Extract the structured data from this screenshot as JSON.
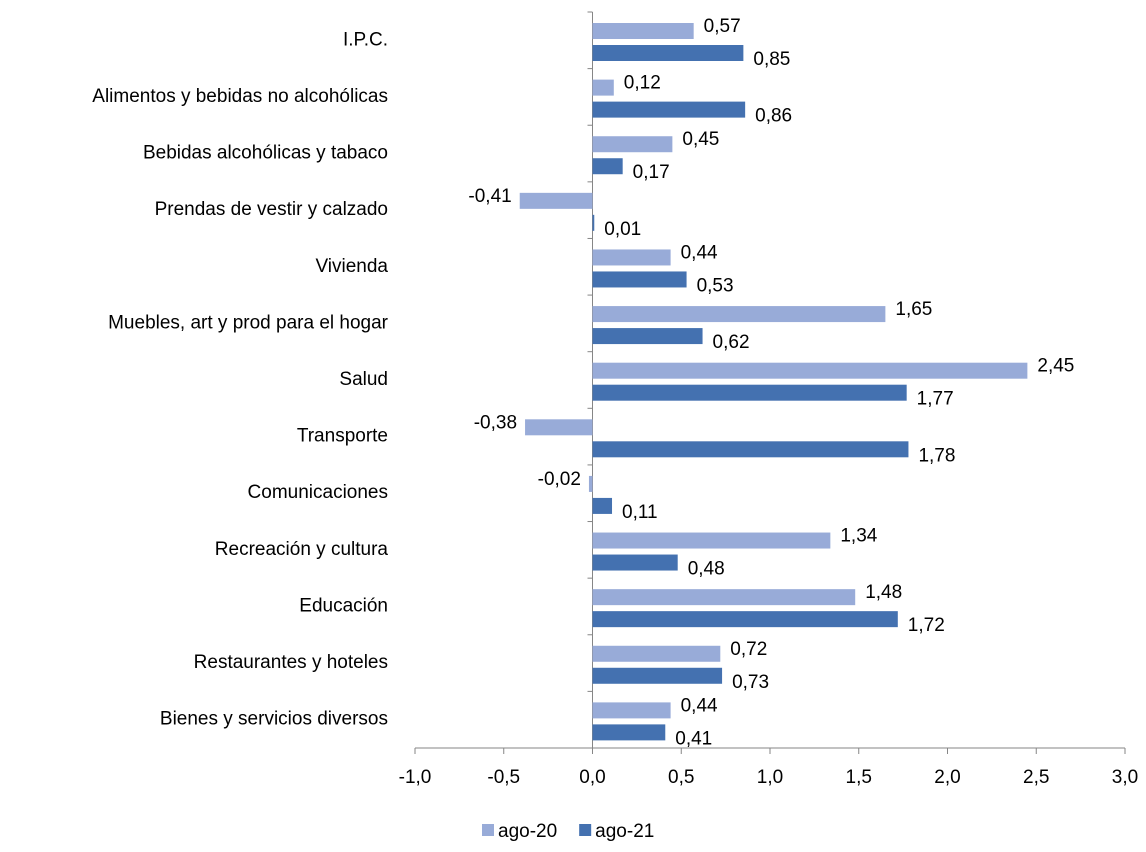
{
  "chart_data": {
    "type": "bar",
    "orientation": "horizontal",
    "categories": [
      "I.P.C.",
      "Alimentos y bebidas no alcohólicas",
      "Bebidas alcohólicas y tabaco",
      "Prendas de vestir y calzado",
      "Vivienda",
      "Muebles, art y prod para el hogar",
      "Salud",
      "Transporte",
      "Comunicaciones",
      "Recreación y cultura",
      "Educación",
      "Restaurantes y hoteles",
      "Bienes y servicios diversos"
    ],
    "series": [
      {
        "name": "ago-20",
        "color": "#98abd8",
        "values": [
          0.57,
          0.12,
          0.45,
          -0.41,
          0.44,
          1.65,
          2.45,
          -0.38,
          -0.02,
          1.34,
          1.48,
          0.72,
          0.44
        ],
        "value_labels": [
          "0,57",
          "0,12",
          "0,45",
          "-0,41",
          "0,44",
          "1,65",
          "2,45",
          "-0,38",
          "-0,02",
          "1,34",
          "1,48",
          "0,72",
          "0,44"
        ]
      },
      {
        "name": "ago-21",
        "color": "#4471b0",
        "values": [
          0.85,
          0.86,
          0.17,
          0.01,
          0.53,
          0.62,
          1.77,
          1.78,
          0.11,
          0.48,
          1.72,
          0.73,
          0.41
        ],
        "value_labels": [
          "0,85",
          "0,86",
          "0,17",
          "0,01",
          "0,53",
          "0,62",
          "1,77",
          "1,78",
          "0,11",
          "0,48",
          "1,72",
          "0,73",
          "0,41"
        ]
      }
    ],
    "xlim": [
      -1,
      3
    ],
    "xticks": [
      {
        "value": -1,
        "label": "-1,0"
      },
      {
        "value": -0.5,
        "label": "-0,5"
      },
      {
        "value": 0,
        "label": "0,0"
      },
      {
        "value": 0.5,
        "label": "0,5"
      },
      {
        "value": 1,
        "label": "1,0"
      },
      {
        "value": 1.5,
        "label": "1,5"
      },
      {
        "value": 2,
        "label": "2,0"
      },
      {
        "value": 2.5,
        "label": "2,5"
      },
      {
        "value": 3,
        "label": "3,0"
      }
    ],
    "grid": false,
    "legend": "bottom"
  }
}
